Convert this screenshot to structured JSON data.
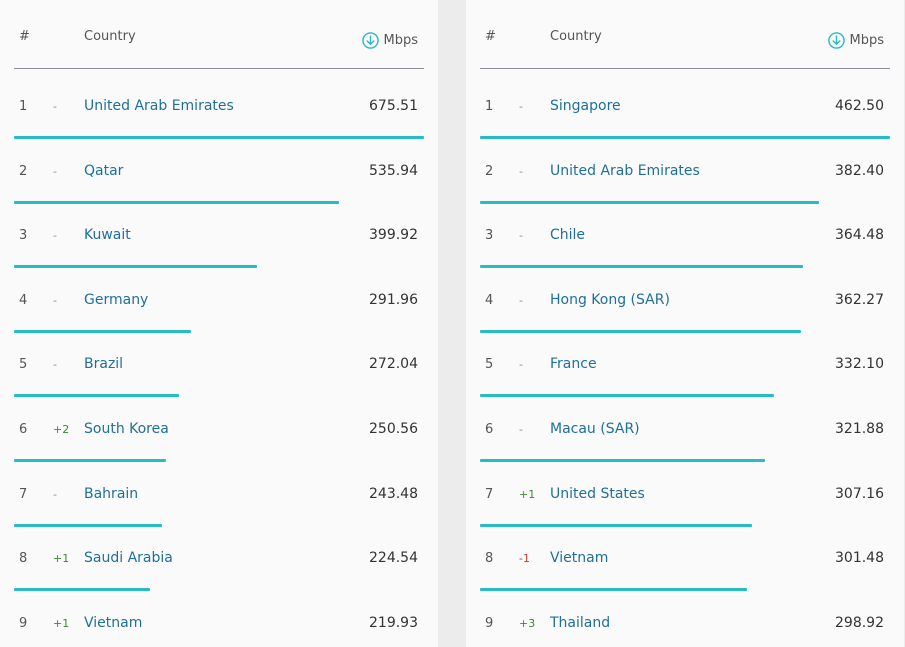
{
  "colors": {
    "accent": "#27bcc5",
    "country_link": "#1f6f9a",
    "rank_up": "#3a8a2e",
    "rank_down": "#c0392b"
  },
  "panels": [
    {
      "header": {
        "rank_label": "#",
        "country_label": "Country",
        "speed_label": "Mbps",
        "speed_icon": "download-circle-icon"
      },
      "rows": [
        {
          "rank": "1",
          "change": "-",
          "country": "United Arab Emirates",
          "speed": "675.51",
          "speed_value": 675.51
        },
        {
          "rank": "2",
          "change": "-",
          "country": "Qatar",
          "speed": "535.94",
          "speed_value": 535.94
        },
        {
          "rank": "3",
          "change": "-",
          "country": "Kuwait",
          "speed": "399.92",
          "speed_value": 399.92
        },
        {
          "rank": "4",
          "change": "-",
          "country": "Germany",
          "speed": "291.96",
          "speed_value": 291.96
        },
        {
          "rank": "5",
          "change": "-",
          "country": "Brazil",
          "speed": "272.04",
          "speed_value": 272.04
        },
        {
          "rank": "6",
          "change": "+2",
          "country": "South Korea",
          "speed": "250.56",
          "speed_value": 250.56
        },
        {
          "rank": "7",
          "change": "-",
          "country": "Bahrain",
          "speed": "243.48",
          "speed_value": 243.48
        },
        {
          "rank": "8",
          "change": "+1",
          "country": "Saudi Arabia",
          "speed": "224.54",
          "speed_value": 224.54
        },
        {
          "rank": "9",
          "change": "+1",
          "country": "Vietnam",
          "speed": "219.93",
          "speed_value": 219.93
        }
      ]
    },
    {
      "header": {
        "rank_label": "#",
        "country_label": "Country",
        "speed_label": "Mbps",
        "speed_icon": "download-circle-icon"
      },
      "rows": [
        {
          "rank": "1",
          "change": "-",
          "country": "Singapore",
          "speed": "462.50",
          "speed_value": 462.5
        },
        {
          "rank": "2",
          "change": "-",
          "country": "United Arab Emirates",
          "speed": "382.40",
          "speed_value": 382.4
        },
        {
          "rank": "3",
          "change": "-",
          "country": "Chile",
          "speed": "364.48",
          "speed_value": 364.48
        },
        {
          "rank": "4",
          "change": "-",
          "country": "Hong Kong (SAR)",
          "speed": "362.27",
          "speed_value": 362.27
        },
        {
          "rank": "5",
          "change": "-",
          "country": "France",
          "speed": "332.10",
          "speed_value": 332.1
        },
        {
          "rank": "6",
          "change": "-",
          "country": "Macau (SAR)",
          "speed": "321.88",
          "speed_value": 321.88
        },
        {
          "rank": "7",
          "change": "+1",
          "country": "United States",
          "speed": "307.16",
          "speed_value": 307.16
        },
        {
          "rank": "8",
          "change": "-1",
          "country": "Vietnam",
          "speed": "301.48",
          "speed_value": 301.48
        },
        {
          "rank": "9",
          "change": "+3",
          "country": "Thailand",
          "speed": "298.92",
          "speed_value": 298.92
        }
      ]
    }
  ]
}
